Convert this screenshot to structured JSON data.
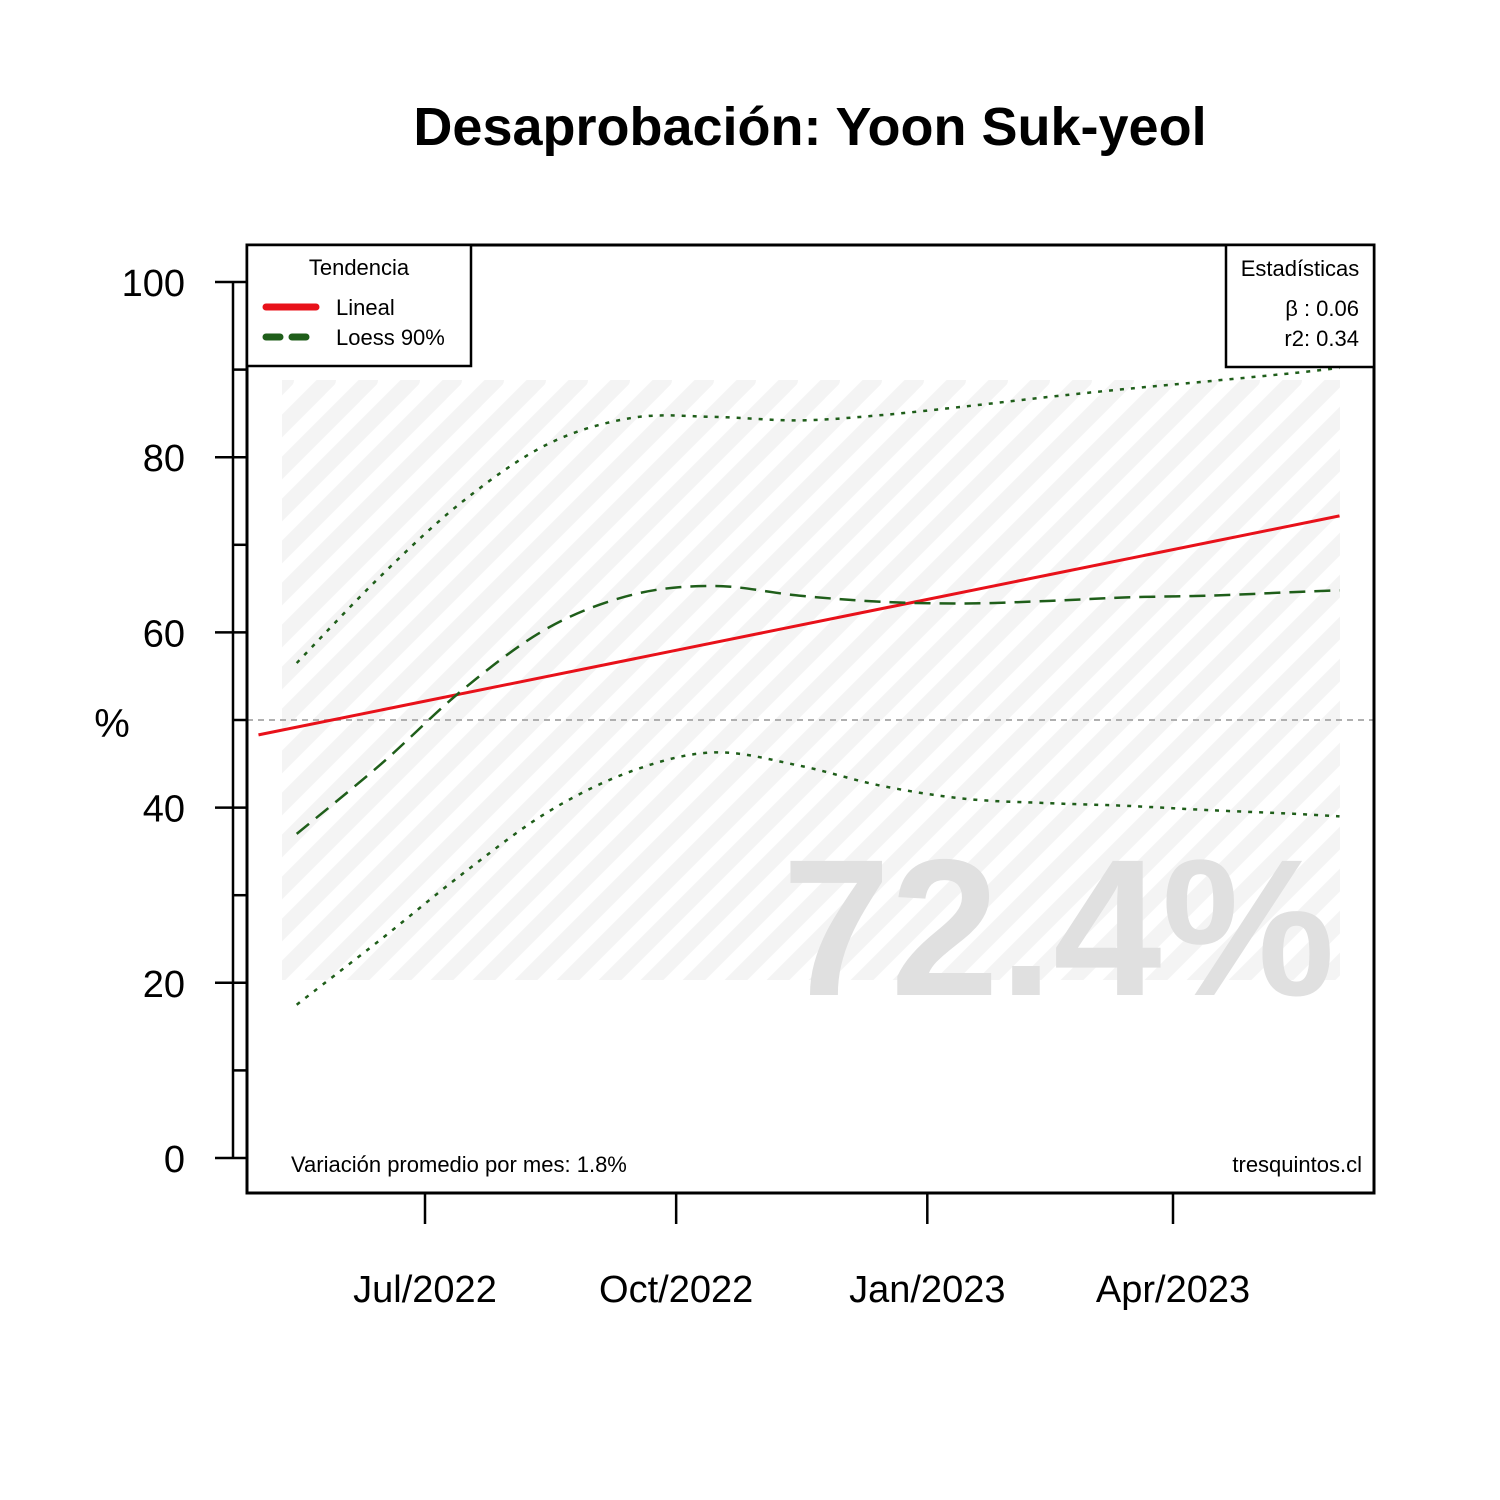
{
  "chart_data": {
    "type": "line",
    "title": "Desaprobación: Yoon Suk-yeol",
    "ylabel": "%",
    "xlabel": "",
    "ylim": [
      0,
      100
    ],
    "yticks": [
      0,
      20,
      40,
      60,
      80,
      100
    ],
    "x_ticks": [
      {
        "label": "Jul/2022",
        "date": "2022-07-01"
      },
      {
        "label": "Oct/2022",
        "date": "2022-10-01"
      },
      {
        "label": "Jan/2023",
        "date": "2023-01-01"
      },
      {
        "label": "Apr/2023",
        "date": "2023-04-01"
      }
    ],
    "reference_line": {
      "y": 50,
      "color": "#b0b0b0",
      "style": "dashed"
    },
    "series": [
      {
        "name": "Lineal",
        "style": "solid",
        "color": "#e8111a",
        "x": [
          "2022-05-01",
          "2023-06-01"
        ],
        "y": [
          48.3,
          73.3
        ]
      },
      {
        "name": "Loess 90%",
        "style": "dashed",
        "color": "#1f5e1a",
        "x": [
          "2022-05-15",
          "2022-06-15",
          "2022-07-15",
          "2022-08-15",
          "2022-09-15",
          "2022-10-15",
          "2022-11-15",
          "2022-12-15",
          "2023-01-15",
          "2023-02-15",
          "2023-03-15",
          "2023-04-15",
          "2023-05-15",
          "2023-06-01"
        ],
        "y": [
          37.0,
          45.0,
          53.5,
          60.5,
          64.3,
          65.3,
          64.2,
          63.5,
          63.3,
          63.6,
          64.0,
          64.2,
          64.6,
          64.8
        ]
      },
      {
        "style": "dotted",
        "color": "#1f5e1a",
        "x": [
          "2022-05-15",
          "2022-06-15",
          "2022-07-15",
          "2022-08-15",
          "2022-09-15",
          "2022-10-15",
          "2022-11-15",
          "2022-12-15",
          "2023-01-15",
          "2023-02-15",
          "2023-03-15",
          "2023-04-15",
          "2023-05-15",
          "2023-06-01"
        ],
        "y": [
          56.5,
          66.5,
          75.0,
          81.5,
          84.5,
          84.6,
          84.2,
          84.8,
          85.8,
          86.9,
          87.8,
          88.7,
          89.6,
          90.2
        ]
      },
      {
        "style": "dotted",
        "color": "#1f5e1a",
        "x": [
          "2022-05-15",
          "2022-06-15",
          "2022-07-15",
          "2022-08-15",
          "2022-09-15",
          "2022-10-15",
          "2022-11-15",
          "2022-12-15",
          "2023-01-15",
          "2023-02-15",
          "2023-03-15",
          "2023-04-15",
          "2023-05-15",
          "2023-06-01"
        ],
        "y": [
          17.5,
          25.0,
          32.5,
          39.5,
          44.2,
          46.3,
          44.8,
          42.5,
          41.0,
          40.5,
          40.2,
          39.7,
          39.3,
          39.0
        ]
      }
    ],
    "legend": {
      "title": "Tendencia",
      "position": "top-left",
      "entries": [
        "Lineal",
        "Loess 90%"
      ]
    },
    "stats_box": {
      "title": "Estadísticas",
      "position": "top-right",
      "beta_text": "β : 0.06",
      "r2_text": "r2: 0.34"
    },
    "watermark": "72.4%",
    "footer_left": "Variación promedio por mes: 1.8%",
    "footer_right": "tresquintos.cl",
    "colors": {
      "linear": "#e8111a",
      "loess": "#1f5e1a",
      "watermark": "#e0e0e0",
      "hatch": "#f4f4f4"
    }
  }
}
